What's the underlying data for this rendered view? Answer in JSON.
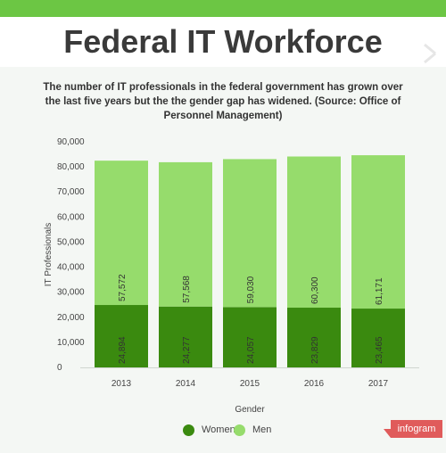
{
  "title": "Federal IT Workforce",
  "subtitle": "The number of IT professionals in the federal government has grown over the last five years but the the gender gap has widened. (Source: Office of Personnel Management)",
  "brand": "infogram",
  "colors": {
    "top_bar": "#6cc644",
    "women": "#3a8a0f",
    "men": "#96dc6c",
    "brand": "#e05b5b"
  },
  "chart_data": {
    "type": "bar",
    "stacked": true,
    "categories": [
      "2013",
      "2014",
      "2015",
      "2016",
      "2017"
    ],
    "series": [
      {
        "name": "Women",
        "values": [
          24894,
          24277,
          24057,
          23829,
          23465
        ],
        "labels": [
          "24,894",
          "24,277",
          "24,057",
          "23,829",
          "23,465"
        ]
      },
      {
        "name": "Men",
        "values": [
          57572,
          57568,
          59030,
          60300,
          61171
        ],
        "labels": [
          "57,572",
          "57,568",
          "59,030",
          "60,300",
          "61,171"
        ]
      }
    ],
    "xlabel": "Gender",
    "ylabel": "IT Professionals",
    "ylim": [
      0,
      90000
    ],
    "yticks": [
      0,
      10000,
      20000,
      30000,
      40000,
      50000,
      60000,
      70000,
      80000,
      90000
    ],
    "ytick_labels": [
      "0",
      "10,000",
      "20,000",
      "30,000",
      "40,000",
      "50,000",
      "60,000",
      "70,000",
      "80,000",
      "90,000"
    ],
    "grid": false,
    "legend": "bottom-center"
  }
}
